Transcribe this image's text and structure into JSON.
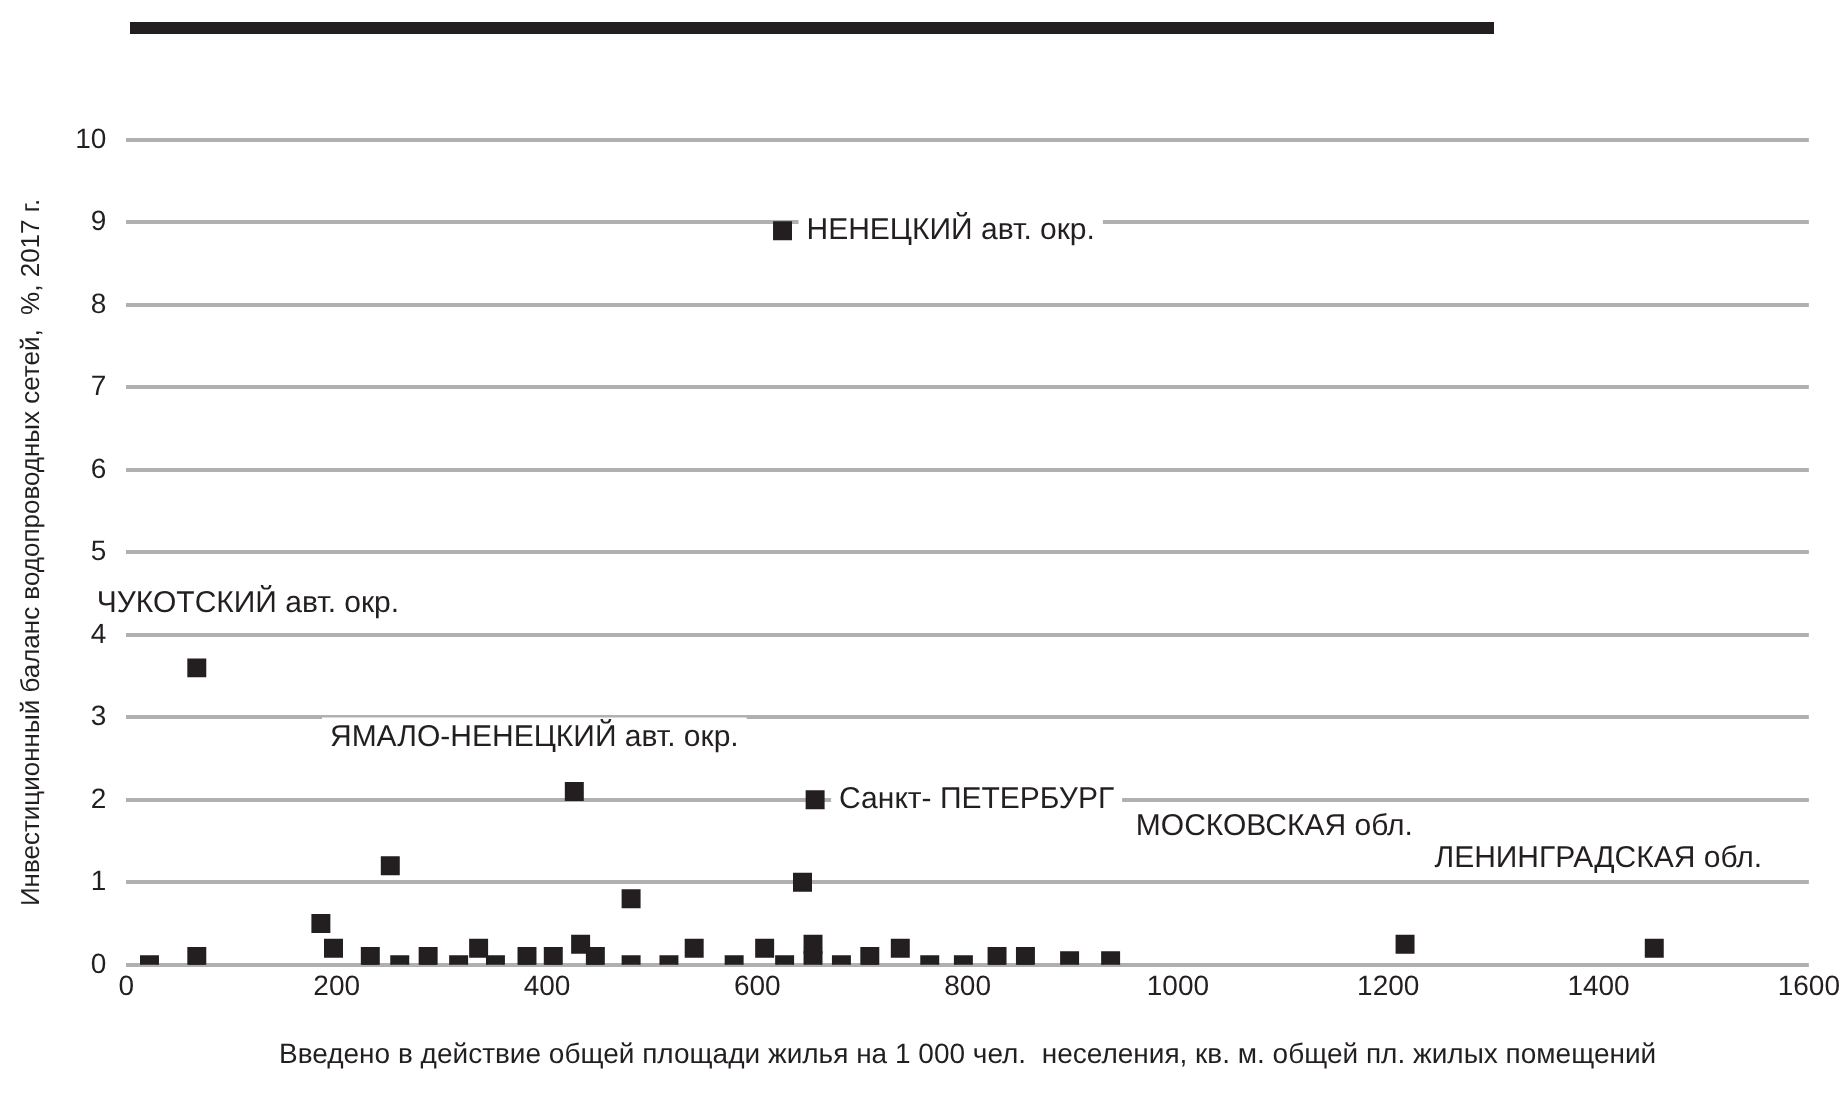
{
  "chart_data": {
    "type": "scatter",
    "xlabel": "Введено в действие общей площади жилья на 1 000 чел.  неселения, кв. м. общей пл. жилых помещений",
    "ylabel": "Инвестиционный баланс водопроводных сетей,  %, 2017 г.",
    "x": [
      22,
      67,
      67,
      185,
      197,
      232,
      251,
      260,
      287,
      316,
      335,
      351,
      381,
      406,
      426,
      432,
      446,
      480,
      480,
      516,
      540,
      578,
      607,
      624,
      626,
      643,
      653,
      653,
      655,
      680,
      707,
      736,
      764,
      796,
      828,
      855,
      897,
      936,
      1216,
      1453
    ],
    "values": [
      0,
      0.1,
      3.6,
      0.5,
      0.2,
      0.1,
      1.2,
      0,
      0.1,
      0,
      0.2,
      0,
      0.1,
      0.1,
      2.1,
      0.25,
      0.1,
      0.8,
      0,
      0,
      0.2,
      0,
      0.2,
      8.9,
      0,
      1.0,
      0.25,
      0.05,
      2.0,
      0,
      0.1,
      0.2,
      0,
      0,
      0.1,
      0.1,
      0.05,
      0.05,
      0.25,
      0.2
    ],
    "color": "#231f20",
    "marker": "square",
    "xlim": [
      0,
      1600
    ],
    "xticks": [
      0,
      200,
      400,
      600,
      800,
      {
        "value": 1000,
        "label": "1000"
      },
      {
        "value": 1200,
        "label": "1200"
      },
      {
        "value": 1400,
        "label": "1400"
      },
      {
        "value": 1600,
        "label": "1600"
      }
    ],
    "ylim": [
      0,
      10
    ],
    "yticks": [
      0,
      1,
      2,
      3,
      4,
      5,
      6,
      7,
      8,
      9,
      10
    ],
    "grid": "y",
    "annotations": [
      {
        "text": "НЕНЕЦКИЙ авт. окр.",
        "x": 624,
        "y": 8.9
      },
      {
        "text": "ЧУКОТСКИЙ авт. окр.",
        "x": 67,
        "y": 3.6
      },
      {
        "text": "ЯМАЛО-НЕНЕЦКИЙ авт. окр.",
        "x": 426,
        "y": 2.1
      },
      {
        "text": "Санкт- ПЕТЕРБУРГ",
        "x": 655,
        "y": 2.0
      },
      "МОСКОВСКАЯ обл.",
      {
        "text": "ЛЕНИНГРАДСКАЯ обл.",
        "x": 1453,
        "y": 0.2
      }
    ]
  }
}
